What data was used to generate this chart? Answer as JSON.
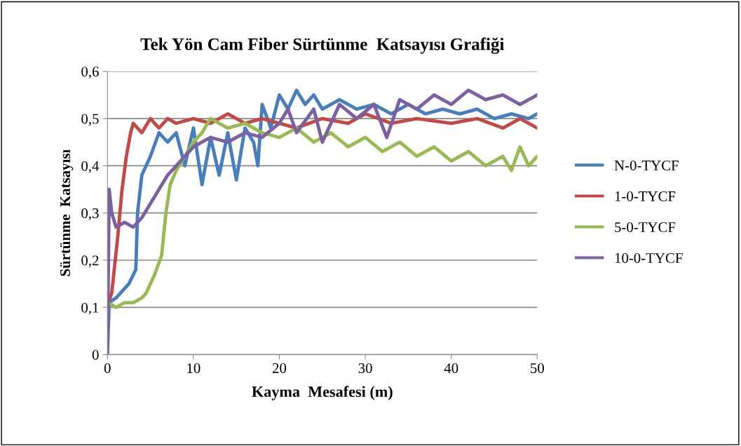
{
  "chart_data": {
    "type": "line",
    "title": "Tek Yön Cam Fiber Sürtünme  Katsayısı Grafiği",
    "xlabel": "Kayma  Mesafesi (m)",
    "ylabel": "Sürtünme  Katsayısı",
    "xlim": [
      0,
      50
    ],
    "xticks": [
      0,
      10,
      20,
      30,
      40,
      50
    ],
    "ylim": [
      0,
      0.6
    ],
    "yticks": [
      {
        "value": 0,
        "label": "0"
      },
      {
        "value": 0.1,
        "label": "0,1"
      },
      {
        "value": 0.2,
        "label": "0,2"
      },
      {
        "value": 0.3,
        "label": "0,3"
      },
      {
        "value": 0.4,
        "label": "0,4"
      },
      {
        "value": 0.5,
        "label": "0,5"
      },
      {
        "value": 0.6,
        "label": "0,6"
      }
    ],
    "grid": "y",
    "legend": "right",
    "marker": "none",
    "line_style": "solid",
    "series": [
      {
        "name": "N-0-TYCF",
        "color": "#4a7ebb",
        "x": [
          0,
          0.2,
          1,
          2.5,
          3.3,
          3.5,
          4,
          5,
          6,
          7,
          8,
          9,
          10,
          11,
          12,
          13,
          14,
          15,
          16,
          17,
          17.5,
          18,
          19,
          20,
          21,
          22,
          23,
          24,
          25,
          27,
          29,
          31,
          33,
          35,
          37,
          39,
          41,
          43,
          45,
          47,
          49,
          50
        ],
        "values": [
          0,
          0.11,
          0.12,
          0.15,
          0.18,
          0.3,
          0.38,
          0.42,
          0.47,
          0.45,
          0.47,
          0.4,
          0.48,
          0.36,
          0.46,
          0.38,
          0.47,
          0.37,
          0.48,
          0.45,
          0.4,
          0.53,
          0.48,
          0.55,
          0.52,
          0.56,
          0.53,
          0.55,
          0.52,
          0.54,
          0.52,
          0.53,
          0.51,
          0.53,
          0.51,
          0.52,
          0.51,
          0.52,
          0.5,
          0.51,
          0.5,
          0.51
        ]
      },
      {
        "name": "1-0-TYCF",
        "color": "#be4b48",
        "x": [
          0.1,
          0.5,
          1.2,
          1.7,
          2.2,
          2.7,
          3,
          4,
          5,
          6,
          7,
          8,
          10,
          12,
          14,
          16,
          18,
          20,
          22,
          25,
          28,
          30,
          33,
          36,
          40,
          43,
          46,
          48,
          50
        ],
        "values": [
          0.11,
          0.13,
          0.25,
          0.35,
          0.42,
          0.47,
          0.49,
          0.47,
          0.5,
          0.48,
          0.5,
          0.49,
          0.5,
          0.49,
          0.51,
          0.49,
          0.5,
          0.49,
          0.48,
          0.5,
          0.49,
          0.51,
          0.49,
          0.5,
          0.49,
          0.5,
          0.48,
          0.5,
          0.48
        ]
      },
      {
        "name": "5-0-TYCF",
        "color": "#98b954",
        "x": [
          0.1,
          1,
          2,
          3,
          4,
          4.5,
          5.5,
          6.3,
          6.8,
          7.3,
          8,
          9,
          10,
          11,
          12,
          14,
          16,
          18,
          20,
          22,
          24,
          26,
          28,
          30,
          32,
          34,
          36,
          38,
          40,
          42,
          44,
          46,
          47,
          48,
          49,
          50
        ],
        "values": [
          0.11,
          0.1,
          0.11,
          0.11,
          0.12,
          0.13,
          0.17,
          0.21,
          0.3,
          0.36,
          0.39,
          0.42,
          0.45,
          0.47,
          0.5,
          0.48,
          0.49,
          0.47,
          0.46,
          0.48,
          0.45,
          0.47,
          0.44,
          0.46,
          0.43,
          0.45,
          0.42,
          0.44,
          0.41,
          0.43,
          0.4,
          0.42,
          0.39,
          0.44,
          0.4,
          0.42
        ]
      },
      {
        "name": "10-0-TYCF",
        "color": "#7d60a0",
        "x": [
          0,
          0.2,
          0.5,
          1,
          2,
          3,
          4,
          5,
          6,
          7,
          8,
          9,
          10,
          12,
          14,
          16,
          18,
          20,
          21,
          22,
          24,
          25,
          27,
          29,
          31,
          32.5,
          34,
          36,
          38,
          40,
          42,
          44,
          46,
          48,
          50
        ],
        "values": [
          0,
          0.35,
          0.3,
          0.27,
          0.28,
          0.27,
          0.29,
          0.32,
          0.35,
          0.38,
          0.4,
          0.42,
          0.44,
          0.46,
          0.45,
          0.47,
          0.46,
          0.49,
          0.52,
          0.47,
          0.52,
          0.45,
          0.53,
          0.5,
          0.53,
          0.46,
          0.54,
          0.52,
          0.55,
          0.53,
          0.56,
          0.54,
          0.55,
          0.53,
          0.55
        ]
      }
    ]
  }
}
